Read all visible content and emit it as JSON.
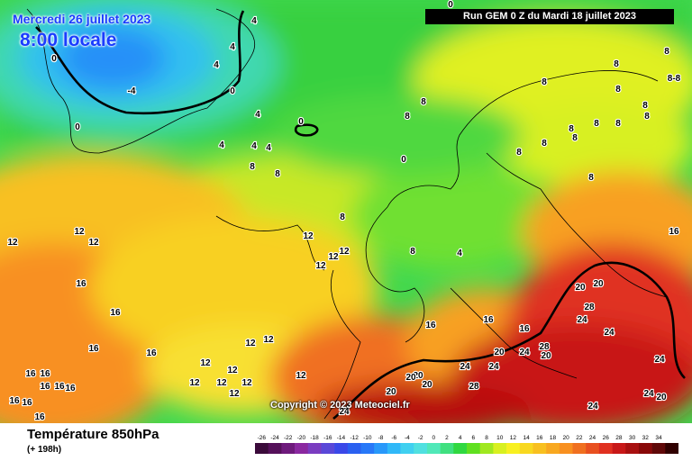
{
  "header": {
    "run_label": "Run GEM 0 Z du Mardi 18 juillet 2023",
    "date_label": "Mercredi 26 juillet 2023",
    "time_label": "8:00 locale"
  },
  "copyright": "Copyright © 2023 Meteociel.fr",
  "footer": {
    "title": "Température 850hPa",
    "subtitle": "(+ 198h)"
  },
  "legend": {
    "values": [
      "-26",
      "-24",
      "-22",
      "-20",
      "-18",
      "-16",
      "-14",
      "-12",
      "-10",
      "-8",
      "-6",
      "-4",
      "-2",
      "0",
      "2",
      "4",
      "6",
      "8",
      "10",
      "12",
      "14",
      "16",
      "18",
      "20",
      "22",
      "24",
      "26",
      "28",
      "30",
      "32",
      "34"
    ],
    "colors": [
      "#3a0a3a",
      "#55105a",
      "#6e1a7c",
      "#8a28a0",
      "#7a3cc0",
      "#5a48d8",
      "#3a48e8",
      "#2a60f0",
      "#2878f8",
      "#2898fa",
      "#30b8f8",
      "#40d0f0",
      "#50e0e0",
      "#50e8b8",
      "#40e080",
      "#30d840",
      "#60e020",
      "#a0e820",
      "#d8f020",
      "#f8f020",
      "#f8d820",
      "#f8c020",
      "#f8a820",
      "#f89020",
      "#f07020",
      "#e85020",
      "#e03020",
      "#c81818",
      "#a81010",
      "#880808",
      "#600808",
      "#300000"
    ]
  },
  "map": {
    "isotherm_labels": [
      {
        "text": "-4"
      },
      {
        "text": "0"
      },
      {
        "text": "0"
      },
      {
        "text": "0"
      },
      {
        "text": "0"
      },
      {
        "text": "0"
      },
      {
        "text": "4"
      },
      {
        "text": "4"
      },
      {
        "text": "4"
      },
      {
        "text": "4"
      },
      {
        "text": "4"
      },
      {
        "text": "4"
      },
      {
        "text": "4"
      },
      {
        "text": "4"
      },
      {
        "text": "0"
      },
      {
        "text": "0"
      },
      {
        "text": "8"
      },
      {
        "text": "8"
      },
      {
        "text": "8"
      },
      {
        "text": "8"
      },
      {
        "text": "8"
      },
      {
        "text": "8"
      },
      {
        "text": "8"
      },
      {
        "text": "8"
      },
      {
        "text": "8"
      },
      {
        "text": "8"
      },
      {
        "text": "8"
      },
      {
        "text": "8"
      },
      {
        "text": "8"
      },
      {
        "text": "8"
      },
      {
        "text": "8"
      },
      {
        "text": "8"
      },
      {
        "text": "8"
      },
      {
        "text": "8"
      },
      {
        "text": "8"
      },
      {
        "text": "8-8"
      },
      {
        "text": "12"
      },
      {
        "text": "12"
      },
      {
        "text": "12"
      },
      {
        "text": "12"
      },
      {
        "text": "12"
      },
      {
        "text": "12"
      },
      {
        "text": "12"
      },
      {
        "text": "12"
      },
      {
        "text": "12"
      },
      {
        "text": "12"
      },
      {
        "text": "12"
      },
      {
        "text": "12"
      },
      {
        "text": "12"
      },
      {
        "text": "12"
      },
      {
        "text": "12"
      },
      {
        "text": "12"
      },
      {
        "text": "16"
      },
      {
        "text": "16"
      },
      {
        "text": "16"
      },
      {
        "text": "16"
      },
      {
        "text": "16"
      },
      {
        "text": "16"
      },
      {
        "text": "16"
      },
      {
        "text": "16"
      },
      {
        "text": "16"
      },
      {
        "text": "16"
      },
      {
        "text": "16"
      },
      {
        "text": "16"
      },
      {
        "text": "16"
      },
      {
        "text": "16"
      },
      {
        "text": "16"
      },
      {
        "text": "16"
      },
      {
        "text": "20"
      },
      {
        "text": "20"
      },
      {
        "text": "20"
      },
      {
        "text": "20"
      },
      {
        "text": "20"
      },
      {
        "text": "20"
      },
      {
        "text": "20"
      },
      {
        "text": "20"
      },
      {
        "text": "20"
      },
      {
        "text": "24"
      },
      {
        "text": "24"
      },
      {
        "text": "24"
      },
      {
        "text": "24"
      },
      {
        "text": "24"
      },
      {
        "text": "24"
      },
      {
        "text": "24"
      },
      {
        "text": "24"
      },
      {
        "text": "24"
      },
      {
        "text": "28"
      },
      {
        "text": "28"
      },
      {
        "text": "28"
      }
    ]
  }
}
